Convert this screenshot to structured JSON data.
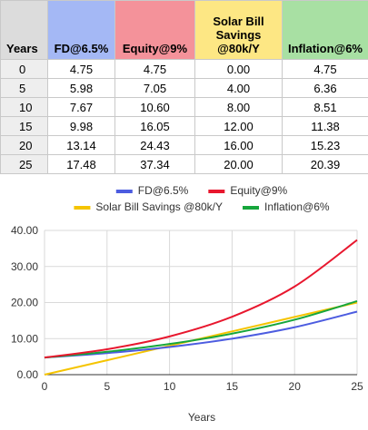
{
  "table": {
    "headers": [
      "Years",
      "FD@6.5%",
      "Equity@9%",
      "Solar Bill Savings @80k/Y",
      "Inflation@6%"
    ],
    "header_colors": [
      "#dcdcdc",
      "#a4b8f5",
      "#f4929a",
      "#fde784",
      "#a8e0a3"
    ],
    "rows": [
      [
        "0",
        "4.75",
        "4.75",
        "0.00",
        "4.75"
      ],
      [
        "5",
        "5.98",
        "7.05",
        "4.00",
        "6.36"
      ],
      [
        "10",
        "7.67",
        "10.60",
        "8.00",
        "8.51"
      ],
      [
        "15",
        "9.98",
        "16.05",
        "12.00",
        "11.38"
      ],
      [
        "20",
        "13.14",
        "24.43",
        "16.00",
        "15.23"
      ],
      [
        "25",
        "17.48",
        "37.34",
        "20.00",
        "20.39"
      ]
    ]
  },
  "chart_data": {
    "type": "line",
    "title": "",
    "xlabel": "Years",
    "ylabel": "",
    "xlim": [
      0,
      25
    ],
    "ylim": [
      0,
      40
    ],
    "x_ticks": [
      0,
      5,
      10,
      15,
      20,
      25
    ],
    "y_ticks": [
      "0.00",
      "10.00",
      "20.00",
      "30.00",
      "40.00"
    ],
    "grid": true,
    "legend_position": "top",
    "x": [
      0,
      5,
      10,
      15,
      20,
      25
    ],
    "series": [
      {
        "name": "FD@6.5%",
        "color": "#4c5ce0",
        "values": [
          4.75,
          5.98,
          7.67,
          9.98,
          13.14,
          17.48
        ]
      },
      {
        "name": "Equity@9%",
        "color": "#e8172e",
        "values": [
          4.75,
          7.05,
          10.6,
          16.05,
          24.43,
          37.34
        ]
      },
      {
        "name": "Solar Bill Savings @80k/Y",
        "color": "#f5c400",
        "values": [
          0.0,
          4.0,
          8.0,
          12.0,
          16.0,
          20.0
        ]
      },
      {
        "name": "Inflation@6%",
        "color": "#16a63c",
        "values": [
          4.75,
          6.36,
          8.51,
          11.38,
          15.23,
          20.39
        ]
      }
    ]
  }
}
